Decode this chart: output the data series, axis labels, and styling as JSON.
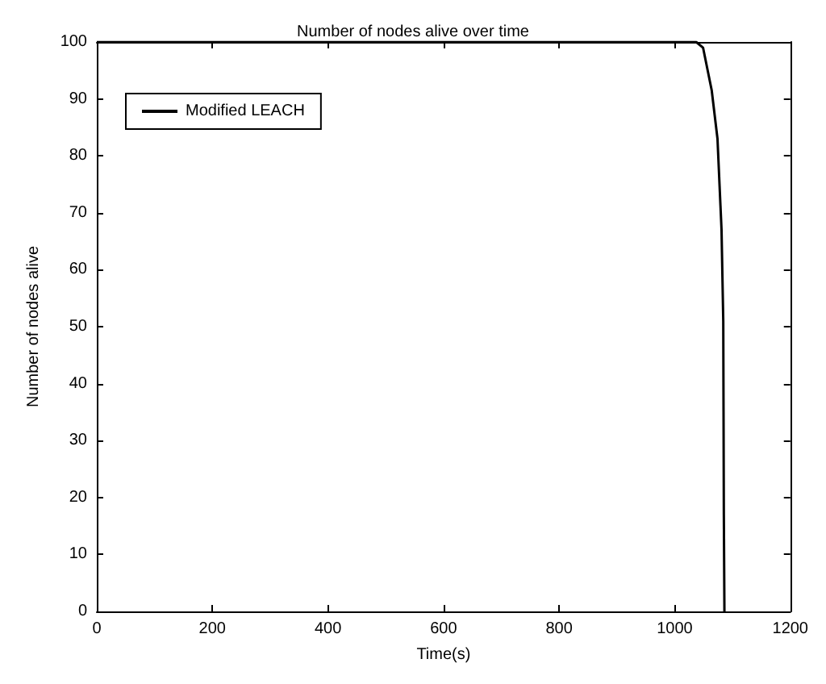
{
  "chart_data": {
    "type": "line",
    "title": "Number of nodes alive over time",
    "xlabel": "Time(s)",
    "ylabel": "Number of nodes alive",
    "series": [
      {
        "name": "Modified LEACH",
        "color": "#000000",
        "x": [
          0,
          1037,
          1049,
          1064,
          1074,
          1081,
          1084,
          1085,
          1086
        ],
        "values": [
          100,
          100,
          99,
          91.5,
          83,
          67,
          51,
          17,
          0
        ]
      }
    ],
    "xlim": [
      0,
      1200
    ],
    "xticks": [
      0,
      200,
      400,
      600,
      800,
      1000,
      1200
    ],
    "ylim": [
      0,
      100
    ],
    "yticks": [
      0,
      10,
      20,
      30,
      40,
      50,
      60,
      70,
      80,
      90,
      100
    ],
    "grid": false,
    "legend": "top left",
    "marker": "none",
    "line_style": "solid"
  }
}
